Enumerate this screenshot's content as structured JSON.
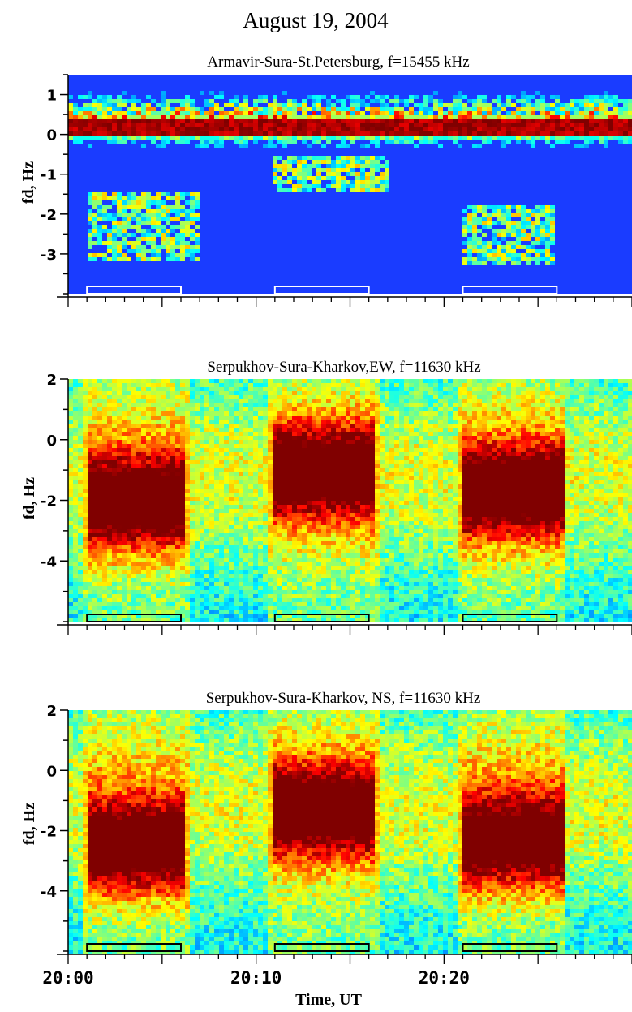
{
  "figure_title": "August 19, 2004",
  "xlabel": "Time, UT",
  "colors": {
    "background": "#ffffff",
    "axis": "#000000",
    "marker_light": "#ffffff",
    "marker_dark": "#000000",
    "panel1_bg": "#1a3cff"
  },
  "chart_data": [
    {
      "type": "heatmap",
      "title": "Armavir-Sura-St.Petersburg, f=15455 kHz",
      "ylabel": "fd, Hz",
      "xlim": [
        "20:00",
        "20:30"
      ],
      "ylim": [
        -4,
        1.5
      ],
      "y_ticks": [
        "1",
        "0",
        "-1",
        "-2",
        "-3"
      ],
      "colormap": "jet",
      "heating_intervals": [
        [
          "20:01",
          "20:06"
        ],
        [
          "20:11",
          "20:16"
        ],
        [
          "20:21",
          "20:26"
        ]
      ],
      "features": [
        {
          "description": "strong band",
          "fd_center": 0.2,
          "time": [
            "20:00",
            "20:30"
          ]
        },
        {
          "description": "spread",
          "fd_range": [
            -3.2,
            -1.5
          ],
          "time": [
            "20:01",
            "20:07"
          ]
        },
        {
          "description": "spread",
          "fd_range": [
            -1.5,
            -0.5
          ],
          "time": [
            "20:11",
            "20:17"
          ]
        },
        {
          "description": "spread",
          "fd_range": [
            -3.3,
            -1.8
          ],
          "time": [
            "20:21",
            "20:26"
          ]
        }
      ]
    },
    {
      "type": "heatmap",
      "title": "Serpukhov-Sura-Kharkov,EW, f=11630 kHz",
      "ylabel": "fd, Hz",
      "xlim": [
        "20:00",
        "20:30"
      ],
      "ylim": [
        -6,
        2
      ],
      "y_ticks": [
        "2",
        "0",
        "-2",
        "-4"
      ],
      "colormap": "jet",
      "heating_intervals": [
        [
          "20:01",
          "20:06"
        ],
        [
          "20:11",
          "20:16"
        ],
        [
          "20:21",
          "20:26"
        ]
      ],
      "features": [
        {
          "fd_center": -2.1,
          "time": [
            "20:01",
            "20:06"
          ]
        },
        {
          "fd_center": -1.0,
          "time": [
            "20:11",
            "20:16"
          ]
        },
        {
          "fd_center": -1.7,
          "time": [
            "20:21",
            "20:26"
          ]
        }
      ]
    },
    {
      "type": "heatmap",
      "title": "Serpukhov-Sura-Kharkov, NS, f=11630 kHz",
      "ylabel": "fd, Hz",
      "xlim": [
        "20:00",
        "20:30"
      ],
      "ylim": [
        -6,
        2
      ],
      "y_ticks": [
        "2",
        "0",
        "-2",
        "-4"
      ],
      "x_ticks": [
        "20:00",
        "20:10",
        "20:20"
      ],
      "colormap": "jet",
      "heating_intervals": [
        [
          "20:01",
          "20:06"
        ],
        [
          "20:11",
          "20:16"
        ],
        [
          "20:21",
          "20:26"
        ]
      ],
      "features": [
        {
          "fd_center": -2.6,
          "time": [
            "20:01",
            "20:06"
          ]
        },
        {
          "fd_center": -1.3,
          "time": [
            "20:11",
            "20:16"
          ]
        },
        {
          "fd_center": -2.4,
          "time": [
            "20:21",
            "20:26"
          ]
        }
      ]
    }
  ]
}
